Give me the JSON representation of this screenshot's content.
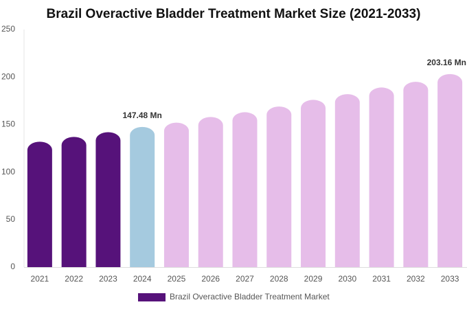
{
  "chart_data": {
    "type": "bar",
    "title": "Brazil Overactive Bladder Treatment Market Size (2021-2033)",
    "categories": [
      "2021",
      "2022",
      "2023",
      "2024",
      "2025",
      "2026",
      "2027",
      "2028",
      "2029",
      "2030",
      "2031",
      "2032",
      "2033"
    ],
    "series": [
      {
        "name": "Brazil Overactive Bladder Treatment Market",
        "color": "#56127a",
        "values": [
          132,
          137,
          142,
          147.48,
          152,
          158,
          163,
          169,
          176,
          182,
          189,
          195,
          203.16
        ],
        "value_labels": [
          null,
          null,
          null,
          "147.48 Mn",
          null,
          null,
          null,
          null,
          null,
          null,
          null,
          null,
          "203.16 Mn"
        ],
        "colors": [
          "#56127a",
          "#56127a",
          "#56127a",
          "#a5cadf",
          "#e6bde9",
          "#e6bde9",
          "#e6bde9",
          "#e6bde9",
          "#e6bde9",
          "#e6bde9",
          "#e6bde9",
          "#e6bde9",
          "#e6bde9"
        ]
      }
    ],
    "ylim": [
      0,
      250
    ],
    "yticks": [
      0,
      50,
      100,
      150,
      200,
      250
    ],
    "grid": false
  }
}
